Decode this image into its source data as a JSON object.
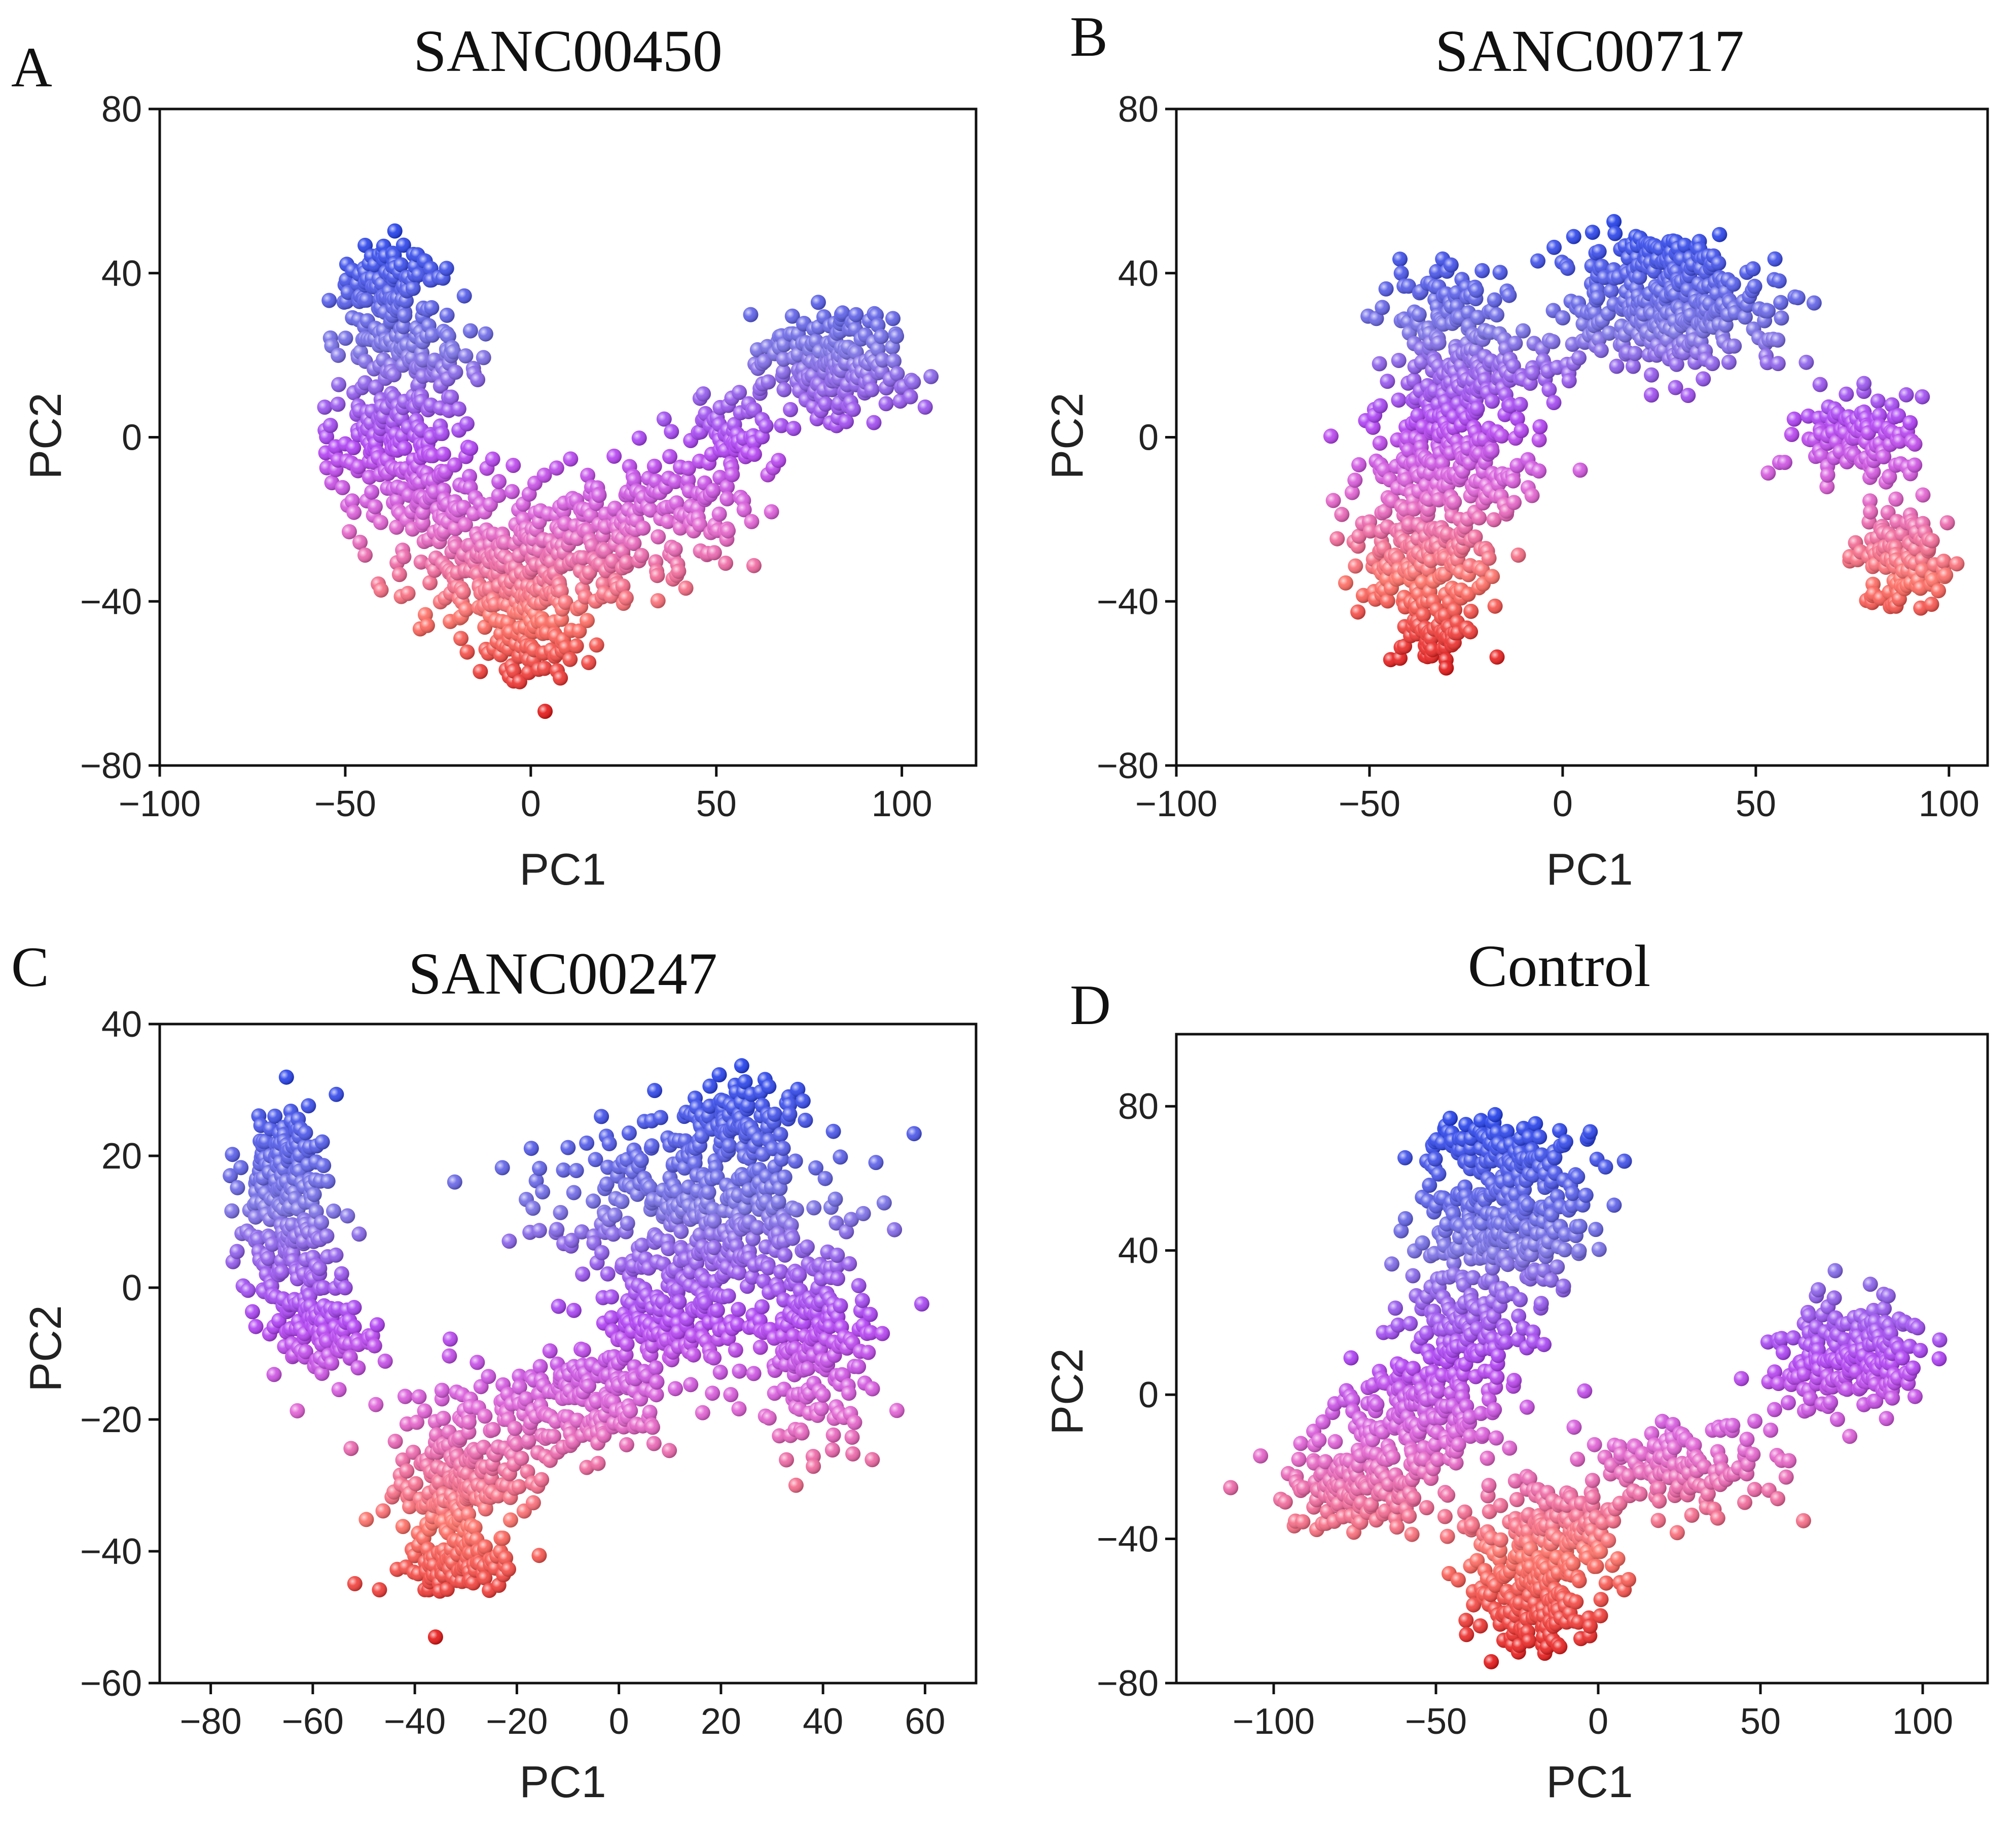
{
  "chart_data": [
    {
      "type": "scatter",
      "panel": "A",
      "title": "SANC00450",
      "xlabel": "PC1",
      "ylabel": "PC2",
      "xlim": [
        -100,
        120
      ],
      "ylim": [
        -80,
        80
      ],
      "xticks": [
        -100,
        -50,
        0,
        50,
        100
      ],
      "yticks": [
        -80,
        -40,
        0,
        40,
        80
      ],
      "color_scale": "PC2 value (red = low, blue = high)",
      "clusters": [
        {
          "cx": -40,
          "cy": 38,
          "sx": 7,
          "sy": 5,
          "n": 90
        },
        {
          "cx": -32,
          "cy": 20,
          "sx": 9,
          "sy": 9,
          "n": 150
        },
        {
          "cx": -38,
          "cy": 0,
          "sx": 10,
          "sy": 6,
          "n": 110
        },
        {
          "cx": -28,
          "cy": -15,
          "sx": 9,
          "sy": 6,
          "n": 90
        },
        {
          "cx": -5,
          "cy": -33,
          "sx": 14,
          "sy": 8,
          "n": 260
        },
        {
          "cx": 2,
          "cy": -50,
          "sx": 7,
          "sy": 5,
          "n": 70
        },
        {
          "cx": 30,
          "cy": -20,
          "sx": 14,
          "sy": 8,
          "n": 190
        },
        {
          "cx": 55,
          "cy": 0,
          "sx": 7,
          "sy": 5,
          "n": 70
        },
        {
          "cx": 82,
          "cy": 18,
          "sx": 10,
          "sy": 7,
          "n": 200
        }
      ]
    },
    {
      "type": "scatter",
      "panel": "B",
      "title": "SANC00717",
      "xlabel": "PC1",
      "ylabel": "PC2",
      "xlim": [
        -100,
        110
      ],
      "ylim": [
        -80,
        80
      ],
      "xticks": [
        -100,
        -50,
        0,
        50,
        100
      ],
      "yticks": [
        -80,
        -40,
        0,
        40,
        80
      ],
      "color_scale": "PC2 value (red = low, blue = high)",
      "clusters": [
        {
          "cx": -30,
          "cy": 32,
          "sx": 7,
          "sy": 5,
          "n": 80
        },
        {
          "cx": -22,
          "cy": 16,
          "sx": 10,
          "sy": 5,
          "n": 130
        },
        {
          "cx": -30,
          "cy": -5,
          "sx": 11,
          "sy": 9,
          "n": 220
        },
        {
          "cx": -36,
          "cy": -30,
          "sx": 9,
          "sy": 8,
          "n": 170
        },
        {
          "cx": -33,
          "cy": -48,
          "sx": 5,
          "sy": 4,
          "n": 60
        },
        {
          "cx": 28,
          "cy": 30,
          "sx": 14,
          "sy": 7,
          "n": 300
        },
        {
          "cx": 25,
          "cy": 44,
          "sx": 9,
          "sy": 3,
          "n": 70
        },
        {
          "cx": 75,
          "cy": 0,
          "sx": 8,
          "sy": 6,
          "n": 110
        },
        {
          "cx": 88,
          "cy": -30,
          "sx": 6,
          "sy": 7,
          "n": 120
        }
      ]
    },
    {
      "type": "scatter",
      "panel": "C",
      "title": "SANC00247",
      "xlabel": "PC1",
      "ylabel": "PC2",
      "xlim": [
        -90,
        70
      ],
      "ylim": [
        -60,
        40
      ],
      "xticks": [
        -80,
        -60,
        -40,
        -20,
        0,
        20,
        40,
        60
      ],
      "yticks": [
        -60,
        -40,
        -20,
        0,
        20,
        40
      ],
      "color_scale": "PC2 value (red = low, blue = high)",
      "clusters": [
        {
          "cx": -65,
          "cy": 20,
          "sx": 4,
          "sy": 4,
          "n": 90
        },
        {
          "cx": -65,
          "cy": 8,
          "sx": 5,
          "sy": 6,
          "n": 150
        },
        {
          "cx": -58,
          "cy": -7,
          "sx": 5,
          "sy": 4,
          "n": 110
        },
        {
          "cx": -32,
          "cy": -30,
          "sx": 7,
          "sy": 7,
          "n": 230
        },
        {
          "cx": -30,
          "cy": -42,
          "sx": 5,
          "sy": 2,
          "n": 90
        },
        {
          "cx": -8,
          "cy": -18,
          "sx": 10,
          "sy": 4,
          "n": 170
        },
        {
          "cx": 15,
          "cy": 12,
          "sx": 14,
          "sy": 7,
          "n": 350
        },
        {
          "cx": 22,
          "cy": 26,
          "sx": 7,
          "sy": 3,
          "n": 90
        },
        {
          "cx": 10,
          "cy": -5,
          "sx": 8,
          "sy": 5,
          "n": 150
        },
        {
          "cx": 38,
          "cy": -10,
          "sx": 6,
          "sy": 8,
          "n": 190
        }
      ]
    },
    {
      "type": "scatter",
      "panel": "D",
      "title": "Control",
      "xlabel": "PC1",
      "ylabel": "PC2",
      "xlim": [
        -130,
        120
      ],
      "ylim": [
        -80,
        100
      ],
      "xticks": [
        -100,
        -50,
        0,
        50,
        100
      ],
      "yticks": [
        -80,
        -40,
        0,
        40,
        80
      ],
      "color_scale": "PC2 value (red = low, blue = high)",
      "clusters": [
        {
          "cx": -30,
          "cy": 68,
          "sx": 11,
          "sy": 5,
          "n": 100
        },
        {
          "cx": -30,
          "cy": 48,
          "sx": 13,
          "sy": 9,
          "n": 250
        },
        {
          "cx": -40,
          "cy": 20,
          "sx": 10,
          "sy": 8,
          "n": 120
        },
        {
          "cx": -55,
          "cy": -5,
          "sx": 12,
          "sy": 8,
          "n": 170
        },
        {
          "cx": -75,
          "cy": -25,
          "sx": 12,
          "sy": 7,
          "n": 150
        },
        {
          "cx": -15,
          "cy": -40,
          "sx": 12,
          "sy": 9,
          "n": 220
        },
        {
          "cx": -20,
          "cy": -62,
          "sx": 8,
          "sy": 5,
          "n": 90
        },
        {
          "cx": 25,
          "cy": -20,
          "sx": 14,
          "sy": 7,
          "n": 130
        },
        {
          "cx": 78,
          "cy": 10,
          "sx": 11,
          "sy": 8,
          "n": 200
        }
      ]
    }
  ]
}
